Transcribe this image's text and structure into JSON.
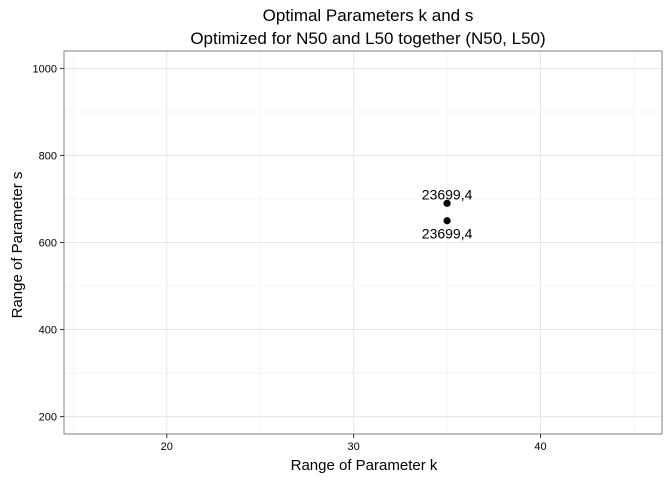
{
  "chart_data": {
    "type": "scatter",
    "title": "Optimal Parameters k and s",
    "subtitle": "Optimized for N50 and L50  together (N50, L50)",
    "xlabel": "Range of Parameter k",
    "ylabel": "Range of Parameter s",
    "xlim": [
      14.5,
      46.5
    ],
    "ylim": [
      160,
      1040
    ],
    "xticks": [
      20,
      30,
      40
    ],
    "yticks": [
      200,
      400,
      600,
      800,
      1000
    ],
    "grid": true,
    "points": [
      {
        "x": 35,
        "y": 690,
        "label": "23699,4",
        "label_position": "above"
      },
      {
        "x": 35,
        "y": 650,
        "label": "23699,4",
        "label_position": "below"
      }
    ]
  }
}
